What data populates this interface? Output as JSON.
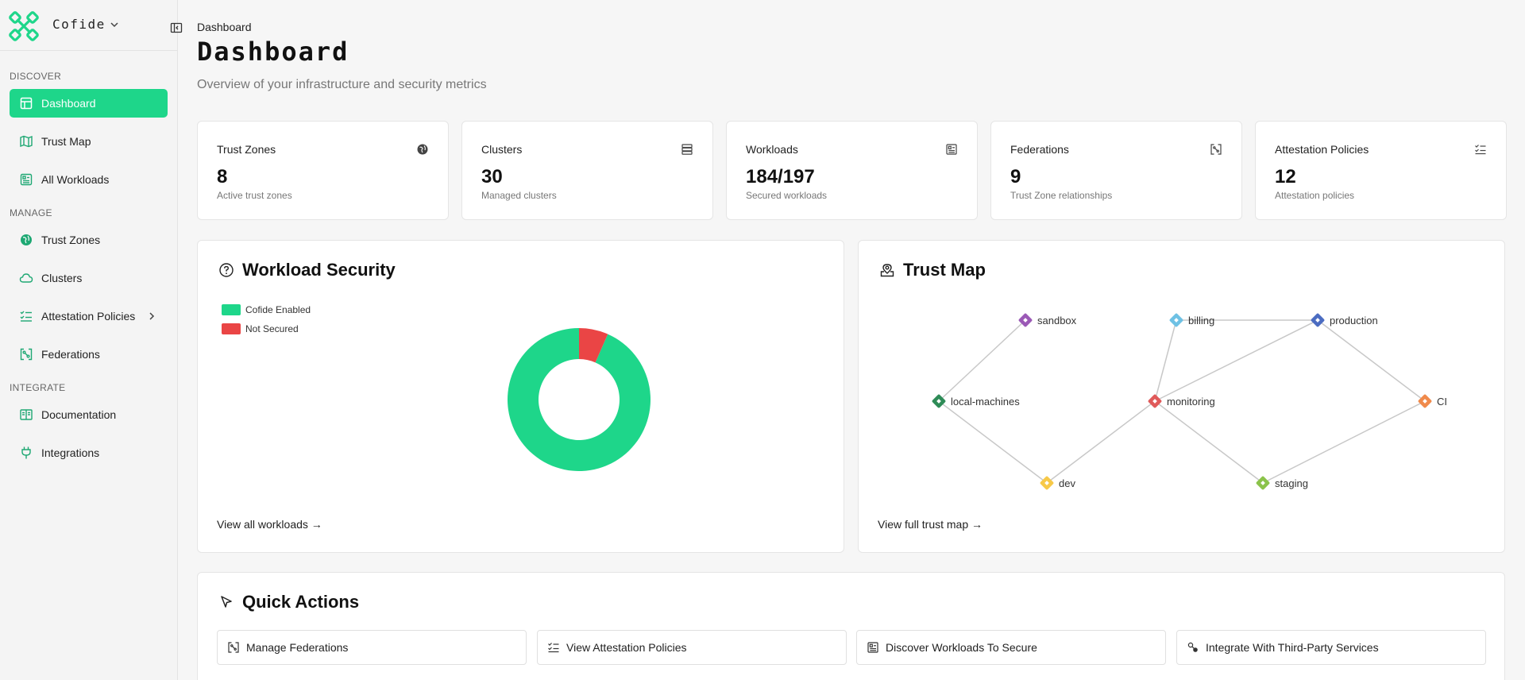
{
  "brand": {
    "name": "Cofide",
    "accent": "#1ed68a"
  },
  "sidebar": {
    "sections": [
      {
        "label": "DISCOVER",
        "items": [
          {
            "label": "Dashboard",
            "icon": "dashboard-icon",
            "active": true
          },
          {
            "label": "Trust Map",
            "icon": "map-icon"
          },
          {
            "label": "All Workloads",
            "icon": "workloads-icon"
          }
        ]
      },
      {
        "label": "MANAGE",
        "items": [
          {
            "label": "Trust Zones",
            "icon": "globe-icon"
          },
          {
            "label": "Clusters",
            "icon": "cloud-icon"
          },
          {
            "label": "Attestation Policies",
            "icon": "list-check-icon"
          },
          {
            "label": "Federations",
            "icon": "federation-icon"
          }
        ]
      },
      {
        "label": "INTEGRATE",
        "items": [
          {
            "label": "Documentation",
            "icon": "book-icon"
          },
          {
            "label": "Integrations",
            "icon": "plug-icon"
          }
        ]
      }
    ]
  },
  "header": {
    "breadcrumb": "Dashboard",
    "title": "Dashboard",
    "subtitle": "Overview of your infrastructure and security metrics"
  },
  "stats": [
    {
      "label": "Trust Zones",
      "value": "8",
      "desc": "Active trust zones",
      "icon": "globe-icon"
    },
    {
      "label": "Clusters",
      "value": "30",
      "desc": "Managed clusters",
      "icon": "server-icon"
    },
    {
      "label": "Workloads",
      "value": "184/197",
      "desc": "Secured workloads",
      "icon": "workloads-icon"
    },
    {
      "label": "Federations",
      "value": "9",
      "desc": "Trust Zone relationships",
      "icon": "federation-icon"
    },
    {
      "label": "Attestation Policies",
      "value": "12",
      "desc": "Attestation policies",
      "icon": "list-check-icon"
    }
  ],
  "workload_security": {
    "title": "Workload Security",
    "link": "View all workloads →",
    "chart_data": {
      "type": "pie",
      "categories": [
        "Cofide Enabled",
        "Not Secured"
      ],
      "values": [
        184,
        13
      ],
      "colors": [
        "#1ed68a",
        "#ea4545"
      ],
      "legend": "top-left"
    }
  },
  "trust_map": {
    "title": "Trust Map",
    "link": "View full trust map →",
    "nodes": [
      {
        "id": "sandbox",
        "label": "sandbox",
        "color": "#9b59b6"
      },
      {
        "id": "billing",
        "label": "billing",
        "color": "#6ec1e4"
      },
      {
        "id": "production",
        "label": "production",
        "color": "#4b6cc1"
      },
      {
        "id": "local-machines",
        "label": "local-machines",
        "color": "#2e8b57"
      },
      {
        "id": "monitoring",
        "label": "monitoring",
        "color": "#e05a5a"
      },
      {
        "id": "ci",
        "label": "CI",
        "color": "#f08a4b"
      },
      {
        "id": "dev",
        "label": "dev",
        "color": "#f7c948"
      },
      {
        "id": "staging",
        "label": "staging",
        "color": "#8bc34a"
      }
    ],
    "edges": [
      [
        "sandbox",
        "local-machines"
      ],
      [
        "local-machines",
        "dev"
      ],
      [
        "dev",
        "monitoring"
      ],
      [
        "monitoring",
        "billing"
      ],
      [
        "monitoring",
        "production"
      ],
      [
        "monitoring",
        "staging"
      ],
      [
        "billing",
        "production"
      ],
      [
        "production",
        "ci"
      ],
      [
        "ci",
        "staging"
      ]
    ]
  },
  "quick_actions": {
    "title": "Quick Actions",
    "buttons": [
      {
        "label": "Manage Federations",
        "icon": "federation-icon"
      },
      {
        "label": "View Attestation Policies",
        "icon": "list-check-icon"
      },
      {
        "label": "Discover Workloads To Secure",
        "icon": "workloads-icon"
      },
      {
        "label": "Integrate With Third-Party Services",
        "icon": "integration-icon"
      }
    ]
  }
}
